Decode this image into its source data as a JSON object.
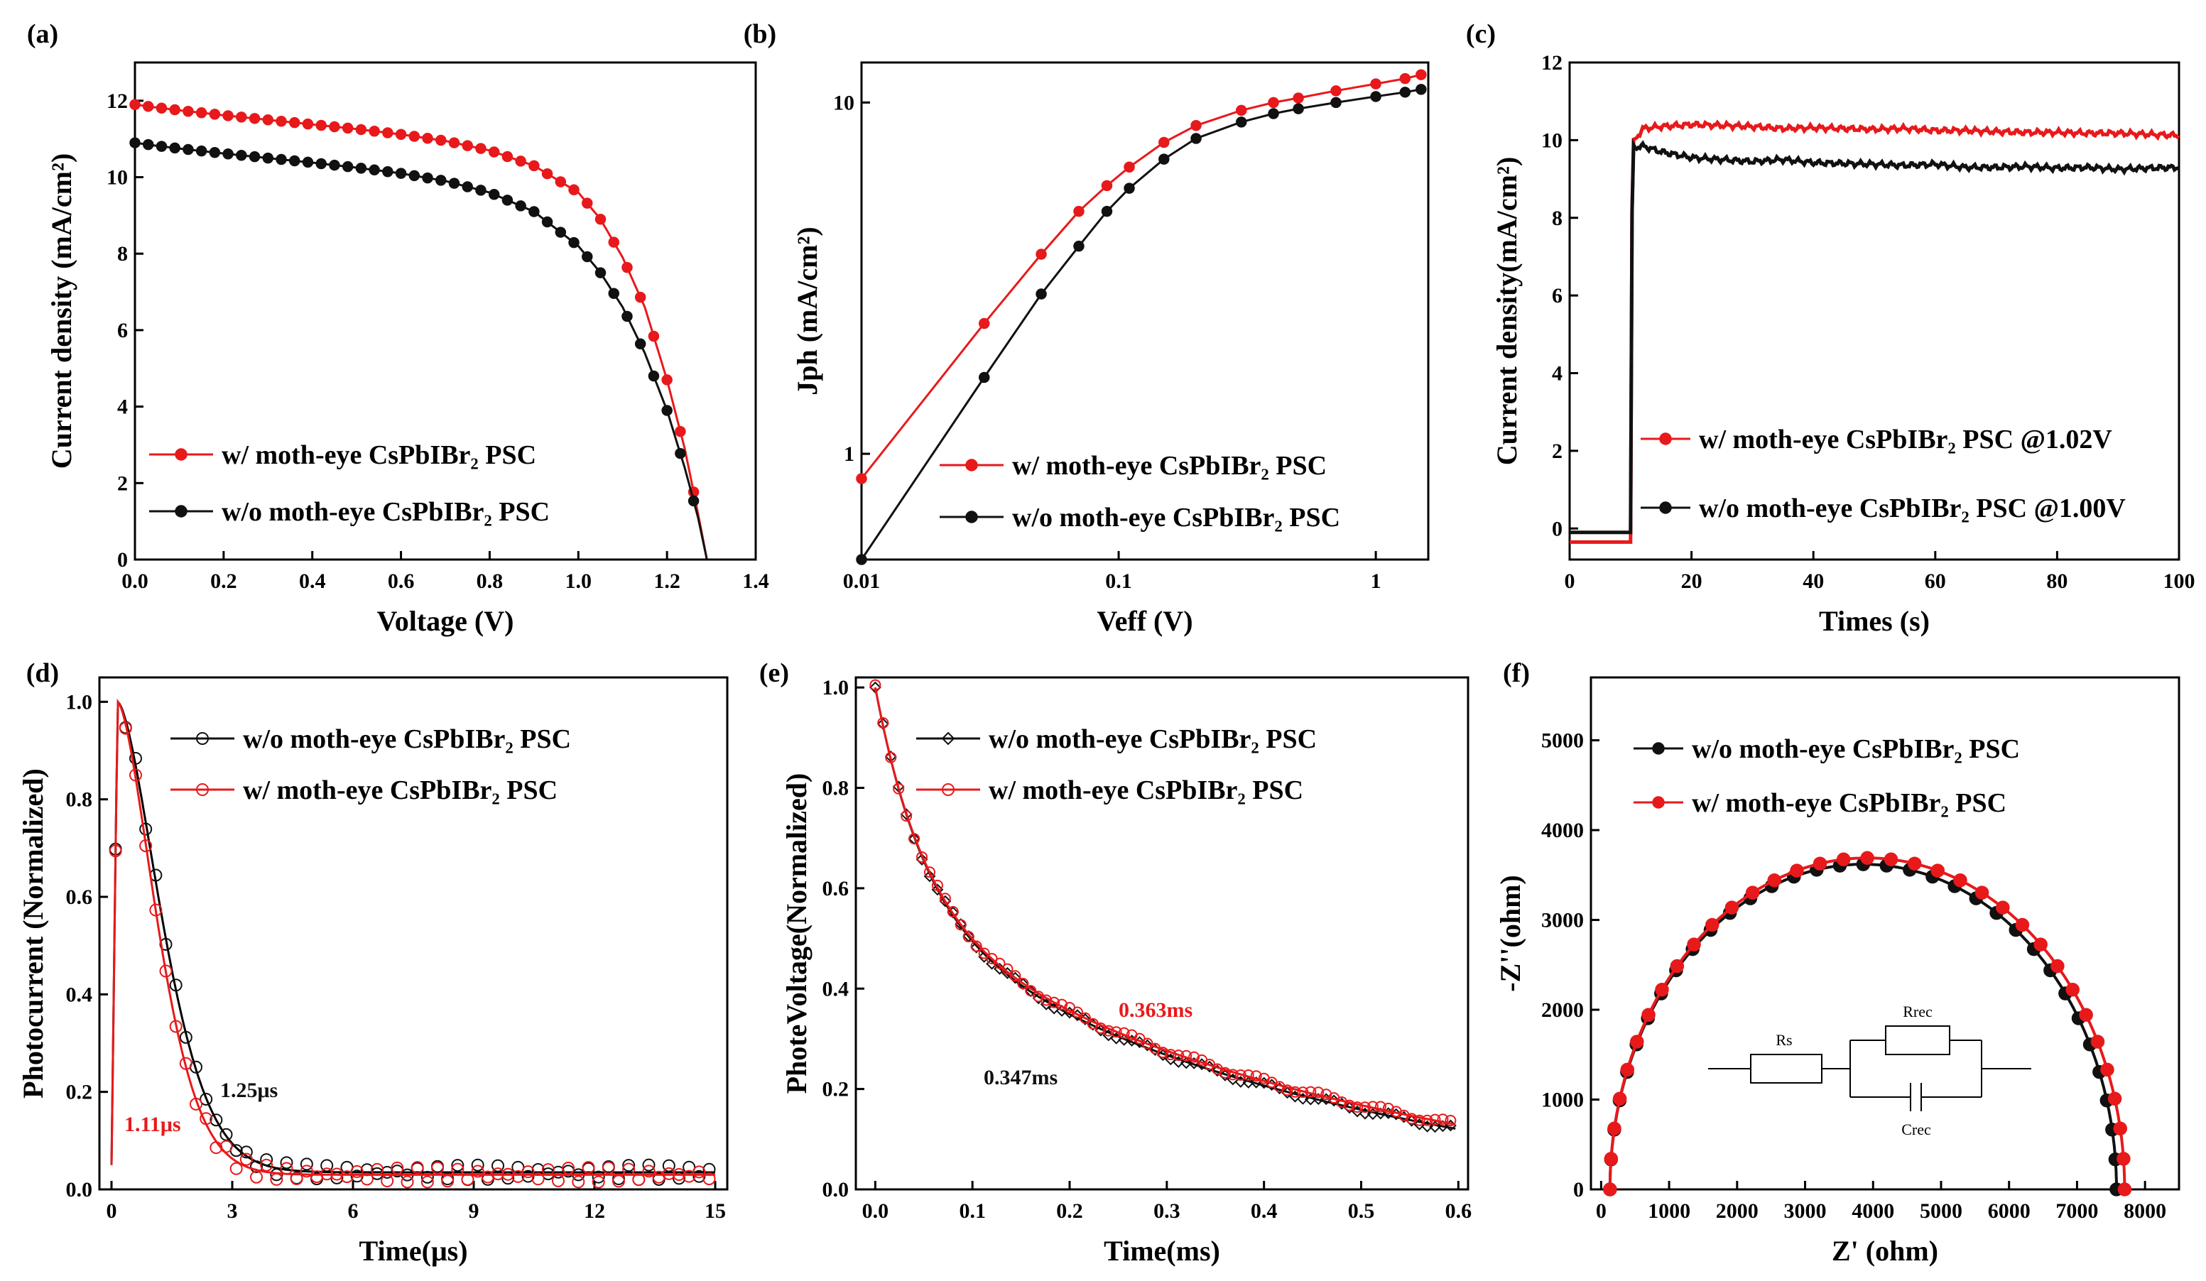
{
  "figure": {
    "description_free": true
  },
  "colors": {
    "red": "#e8191b",
    "black": "#111111",
    "fit": "#000000"
  },
  "chart_data": [
    {
      "id": "a",
      "type": "line",
      "panel_label": "(a)",
      "xlabel": "Voltage (V)",
      "ylabel": "Current density (mA/cm²)",
      "xlim": [
        0,
        1.4
      ],
      "ylim": [
        0,
        13
      ],
      "xticks": [
        0.0,
        0.2,
        0.4,
        0.6,
        0.8,
        1.0,
        1.2,
        1.4
      ],
      "xtick_labels": [
        "0.0",
        "0.2",
        "0.4",
        "0.6",
        "0.8",
        "1.0",
        "1.2",
        "1.4"
      ],
      "yticks": [
        0,
        2,
        4,
        6,
        8,
        10,
        12
      ],
      "ytick_labels": [
        "0",
        "2",
        "4",
        "6",
        "8",
        "10",
        "12"
      ],
      "series": [
        {
          "name": "w/ moth-eye CsPbIBr2 PSC",
          "color": "#e8191b",
          "marker": "filled-circle",
          "x": [
            0,
            0.05,
            0.1,
            0.2,
            0.3,
            0.4,
            0.5,
            0.6,
            0.7,
            0.8,
            0.9,
            1.0,
            1.05,
            1.1,
            1.15,
            1.2,
            1.24,
            1.27,
            1.29
          ],
          "y": [
            11.9,
            11.82,
            11.75,
            11.62,
            11.5,
            11.38,
            11.26,
            11.12,
            10.95,
            10.7,
            10.3,
            9.6,
            8.9,
            7.9,
            6.6,
            4.7,
            2.9,
            1.2,
            0.0
          ]
        },
        {
          "name": "w/o moth-eye CsPbIBr2 PSC",
          "color": "#111111",
          "marker": "filled-circle",
          "x": [
            0,
            0.05,
            0.1,
            0.2,
            0.3,
            0.4,
            0.5,
            0.6,
            0.7,
            0.8,
            0.9,
            1.0,
            1.05,
            1.1,
            1.15,
            1.2,
            1.24,
            1.27,
            1.29
          ],
          "y": [
            10.9,
            10.82,
            10.75,
            10.62,
            10.5,
            10.38,
            10.25,
            10.1,
            9.9,
            9.6,
            9.1,
            8.2,
            7.5,
            6.6,
            5.4,
            3.9,
            2.4,
            1.1,
            0.0
          ]
        }
      ],
      "legend": [
        "w/   moth-eye   CsPbIBr₂   PSC",
        "w/o moth-eye   CsPbIBr₂   PSC"
      ]
    },
    {
      "id": "b",
      "type": "line",
      "panel_label": "(b)",
      "xlabel": "Veff (V)",
      "ylabel": "Jph (mA/cm²)",
      "xscale": "log",
      "yscale": "log",
      "xlim": [
        0.01,
        1.6
      ],
      "ylim": [
        0.5,
        13
      ],
      "xticks": [
        0.01,
        0.1,
        1
      ],
      "xtick_labels": [
        "0.01",
        "0.1",
        "1"
      ],
      "yticks": [
        1,
        10
      ],
      "ytick_labels": [
        "1",
        "10"
      ],
      "series": [
        {
          "name": "w/ moth-eye CsPbIBr2 PSC",
          "color": "#e8191b",
          "marker": "filled-circle",
          "x": [
            0.01,
            0.03,
            0.05,
            0.07,
            0.09,
            0.11,
            0.15,
            0.2,
            0.3,
            0.4,
            0.5,
            0.7,
            1.0,
            1.3,
            1.5
          ],
          "y": [
            0.85,
            2.35,
            3.7,
            4.9,
            5.8,
            6.55,
            7.7,
            8.6,
            9.5,
            10.0,
            10.3,
            10.8,
            11.3,
            11.7,
            12.0
          ]
        },
        {
          "name": "w/o moth-eye CsPbIBr2 PSC",
          "color": "#111111",
          "marker": "filled-circle",
          "x": [
            0.01,
            0.03,
            0.05,
            0.07,
            0.09,
            0.11,
            0.15,
            0.2,
            0.3,
            0.4,
            0.5,
            0.7,
            1.0,
            1.3,
            1.5
          ],
          "y": [
            0.5,
            1.65,
            2.85,
            3.9,
            4.9,
            5.7,
            6.9,
            7.9,
            8.8,
            9.3,
            9.6,
            10.0,
            10.4,
            10.7,
            10.9
          ]
        }
      ],
      "legend": [
        "w/   moth-eye CsPbIBr₂ PSC",
        "w/o moth-eye CsPbIBr₂ PSC"
      ]
    },
    {
      "id": "c",
      "type": "line",
      "panel_label": "(c)",
      "xlabel": "Times (s)",
      "ylabel": "Current density(mA/cm²)",
      "xlim": [
        0,
        100
      ],
      "ylim": [
        -0.8,
        12
      ],
      "xticks": [
        0,
        20,
        40,
        60,
        80,
        100
      ],
      "xtick_labels": [
        "0",
        "20",
        "40",
        "60",
        "80",
        "100"
      ],
      "yticks": [
        0,
        2,
        4,
        6,
        8,
        10,
        12
      ],
      "ytick_labels": [
        "0",
        "2",
        "4",
        "6",
        "8",
        "10",
        "12"
      ],
      "series": [
        {
          "name": "w/ moth-eye CsPbIBr2 PSC @1.02V",
          "color": "#e8191b",
          "x": [
            0,
            10,
            10.3,
            12,
            15,
            20,
            25,
            30,
            35,
            40,
            45,
            50,
            55,
            60,
            65,
            70,
            75,
            80,
            85,
            90,
            95,
            100
          ],
          "y": [
            -0.35,
            -0.35,
            9.9,
            10.3,
            10.35,
            10.4,
            10.38,
            10.35,
            10.3,
            10.32,
            10.3,
            10.28,
            10.3,
            10.25,
            10.25,
            10.22,
            10.2,
            10.2,
            10.18,
            10.18,
            10.15,
            10.12
          ]
        },
        {
          "name": "w/o moth-eye CsPbIBr2 PSC @1.00V",
          "color": "#111111",
          "x": [
            0,
            10,
            10.3,
            12,
            15,
            20,
            25,
            30,
            35,
            40,
            45,
            50,
            55,
            60,
            65,
            70,
            75,
            80,
            85,
            90,
            95,
            100
          ],
          "y": [
            -0.1,
            -0.1,
            9.8,
            9.85,
            9.7,
            9.55,
            9.5,
            9.45,
            9.5,
            9.42,
            9.4,
            9.38,
            9.35,
            9.38,
            9.3,
            9.3,
            9.32,
            9.28,
            9.3,
            9.25,
            9.28,
            9.3
          ]
        }
      ],
      "legend": [
        "w/   moth-eye   CsPbIBr₂ PSC  @1.02V",
        "w/o moth-eye   CsPbIBr₂ PSC  @1.00V"
      ]
    },
    {
      "id": "d",
      "type": "scatter",
      "panel_label": "(d)",
      "xlabel": "Time(μs)",
      "ylabel": "Photocurrent (Normalized)",
      "xlim": [
        -0.3,
        15.3
      ],
      "ylim": [
        0,
        1.05
      ],
      "xticks": [
        0,
        3,
        6,
        9,
        12,
        15
      ],
      "xtick_labels": [
        "0",
        "3",
        "6",
        "9",
        "12",
        "15"
      ],
      "yticks": [
        0.0,
        0.2,
        0.4,
        0.6,
        0.8,
        1.0
      ],
      "ytick_labels": [
        "0.0",
        "0.2",
        "0.4",
        "0.6",
        "0.8",
        "1.0"
      ],
      "series": [
        {
          "name": "w/o moth-eye CsPbIBr2 PSC",
          "color": "#111111",
          "marker": "open-circle",
          "tau_us": 1.25,
          "peak_t": 0.15,
          "baseline": 0.035
        },
        {
          "name": "w/ moth-eye CsPbIBr2 PSC",
          "color": "#e8191b",
          "marker": "open-circle",
          "tau_us": 1.11,
          "peak_t": 0.15,
          "baseline": 0.03
        }
      ],
      "legend": [
        "w/o moth-eye CsPbIBr₂ PSC",
        "w/   moth-eye CsPbIBr₂ PSC"
      ],
      "annotations": [
        {
          "text": "1.25μs",
          "color": "#111111"
        },
        {
          "text": "1.11μs",
          "color": "#e8191b"
        }
      ]
    },
    {
      "id": "e",
      "type": "scatter",
      "panel_label": "(e)",
      "xlabel": "Time(ms)",
      "ylabel": "PhoteVoltage(Normalized)",
      "xlim": [
        -0.02,
        0.61
      ],
      "ylim": [
        0,
        1.02
      ],
      "xticks": [
        0.0,
        0.1,
        0.2,
        0.3,
        0.4,
        0.5,
        0.6
      ],
      "xtick_labels": [
        "0.0",
        "0.1",
        "0.2",
        "0.3",
        "0.4",
        "0.5",
        "0.6"
      ],
      "yticks": [
        0.0,
        0.2,
        0.4,
        0.6,
        0.8,
        1.0
      ],
      "ytick_labels": [
        "0.0",
        "0.2",
        "0.4",
        "0.6",
        "0.8",
        "1.0"
      ],
      "series": [
        {
          "name": "w/o moth-eye CsPbIBr2 PSC",
          "color": "#111111",
          "marker": "open-diamond",
          "tau_ms": 0.347
        },
        {
          "name": "w/ moth-eye CsPbIBr2 PSC",
          "color": "#e8191b",
          "marker": "open-circle",
          "tau_ms": 0.363
        }
      ],
      "legend": [
        "w/o moth-eye CsPbIBr₂ PSC",
        "w/   moth-eye CsPbIBr₂ PSC"
      ],
      "annotations": [
        {
          "text": "0.347ms",
          "color": "#111111"
        },
        {
          "text": "0.363ms",
          "color": "#e8191b"
        }
      ]
    },
    {
      "id": "f",
      "type": "line",
      "panel_label": "(f)",
      "xlabel": "Z' (ohm)",
      "ylabel": "-Z''(ohm)",
      "xlim": [
        -150,
        8500
      ],
      "ylim": [
        0,
        5700
      ],
      "xticks": [
        0,
        1000,
        2000,
        3000,
        4000,
        5000,
        6000,
        7000,
        8000
      ],
      "xtick_labels": [
        "0",
        "1000",
        "2000",
        "3000",
        "4000",
        "5000",
        "6000",
        "7000",
        "8000"
      ],
      "yticks": [
        0,
        1000,
        2000,
        3000,
        4000,
        5000
      ],
      "ytick_labels": [
        "0",
        "1000",
        "2000",
        "3000",
        "4000",
        "5000"
      ],
      "series": [
        {
          "name": "w/o moth-eye CsPbIBr2 PSC",
          "color": "#111111",
          "marker": "filled-circle",
          "Rs_ohm": 130,
          "Rrec_ohm": 7450,
          "peak": 3620
        },
        {
          "name": "w/ moth-eye CsPbIBr2 PSC",
          "color": "#e8191b",
          "marker": "filled-circle",
          "Rs_ohm": 130,
          "Rrec_ohm": 7570,
          "peak": 3690
        }
      ],
      "legend": [
        "w/o moth-eye CsPbIBr₂ PSC",
        "w/   moth-eye CsPbIBr₂ PSC"
      ],
      "circuit_labels": {
        "rs": "Rs",
        "rrec": "Rrec",
        "crec": "Crec"
      }
    }
  ]
}
